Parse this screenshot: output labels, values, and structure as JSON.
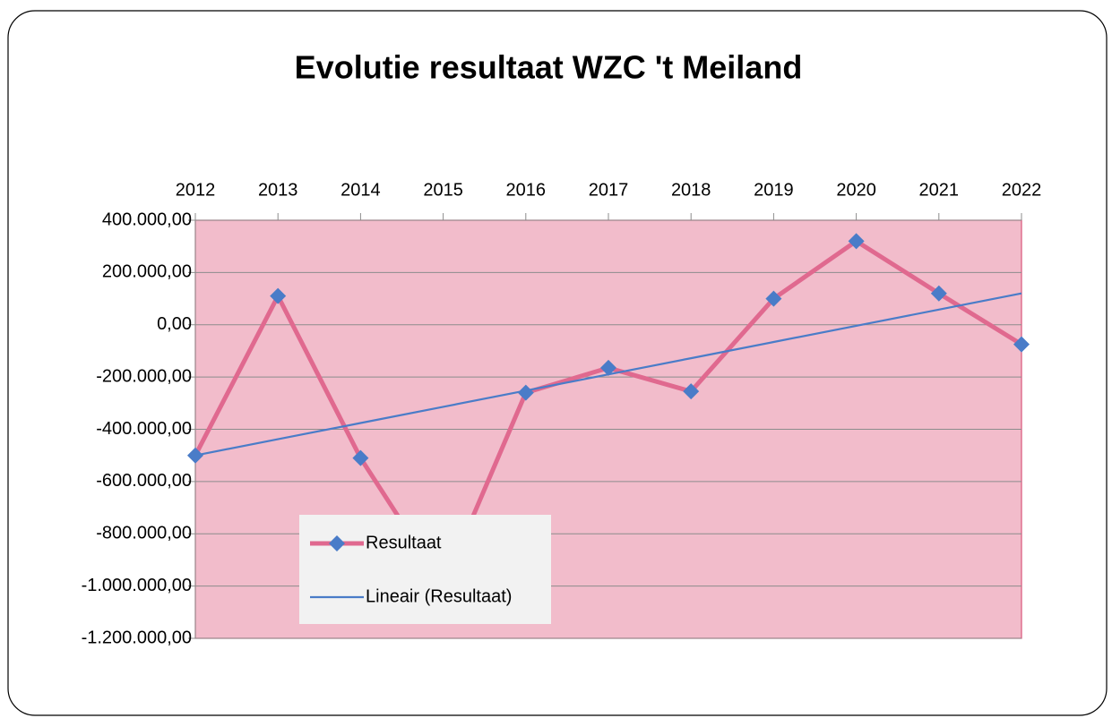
{
  "chart_data": {
    "type": "line",
    "title": "Evolutie resultaat WZC 't Meiland",
    "categories": [
      "2012",
      "2013",
      "2014",
      "2015",
      "2016",
      "2017",
      "2018",
      "2019",
      "2020",
      "2021",
      "2022"
    ],
    "series": [
      {
        "name": "Resultaat",
        "color": "#e0698f",
        "marker": "diamond",
        "marker_color": "#4a7cc8",
        "values": [
          -500000,
          110000,
          -510000,
          -1000000,
          -260000,
          -165000,
          -255000,
          100000,
          320000,
          120000,
          -75000
        ]
      },
      {
        "name": "Lineair (Resultaat)",
        "color": "#4a7cc8",
        "values": [
          -500000,
          -438000,
          -376000,
          -314000,
          -252000,
          -190000,
          -128000,
          -66000,
          -4000,
          58000,
          120000
        ]
      }
    ],
    "ylim": [
      -1200000,
      400000
    ],
    "yticks": [
      {
        "value": 400000,
        "label": "400.000,00"
      },
      {
        "value": 200000,
        "label": "200.000,00"
      },
      {
        "value": 0,
        "label": "0,00"
      },
      {
        "value": -200000,
        "label": "-200.000,00"
      },
      {
        "value": -400000,
        "label": "-400.000,00"
      },
      {
        "value": -600000,
        "label": "-600.000,00"
      },
      {
        "value": -800000,
        "label": "-800.000,00"
      },
      {
        "value": -1000000,
        "label": "-1.000.000,00"
      },
      {
        "value": -1200000,
        "label": "-1.200.000,00"
      }
    ],
    "grid": true,
    "plot_background": "#f2bccb",
    "legend": "lower left"
  }
}
